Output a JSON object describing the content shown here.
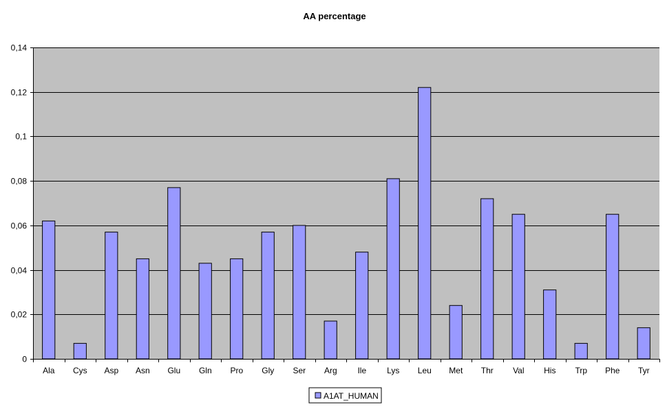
{
  "chart_data": {
    "type": "bar",
    "title": "AA percentage",
    "xlabel": "",
    "ylabel": "",
    "categories": [
      "Ala",
      "Cys",
      "Asp",
      "Asn",
      "Glu",
      "Gln",
      "Pro",
      "Gly",
      "Ser",
      "Arg",
      "Ile",
      "Lys",
      "Leu",
      "Met",
      "Thr",
      "Val",
      "His",
      "Trp",
      "Phe",
      "Tyr"
    ],
    "series": [
      {
        "name": "A1AT_HUMAN",
        "values": [
          0.062,
          0.007,
          0.057,
          0.045,
          0.077,
          0.043,
          0.045,
          0.057,
          0.06,
          0.017,
          0.048,
          0.081,
          0.122,
          0.024,
          0.072,
          0.065,
          0.031,
          0.007,
          0.065,
          0.014
        ],
        "color": "#9999ff"
      }
    ],
    "ylim": [
      0,
      0.14
    ],
    "yticks": [
      0,
      0.02,
      0.04,
      0.06,
      0.08,
      0.1,
      0.12,
      0.14
    ],
    "ytick_labels": [
      "0",
      "0,02",
      "0,04",
      "0,06",
      "0,08",
      "0,1",
      "0,12",
      "0,14"
    ],
    "grid": true,
    "legend_position": "bottom",
    "plot_background": "#c0c0c0",
    "bar_stroke": "#000000"
  }
}
